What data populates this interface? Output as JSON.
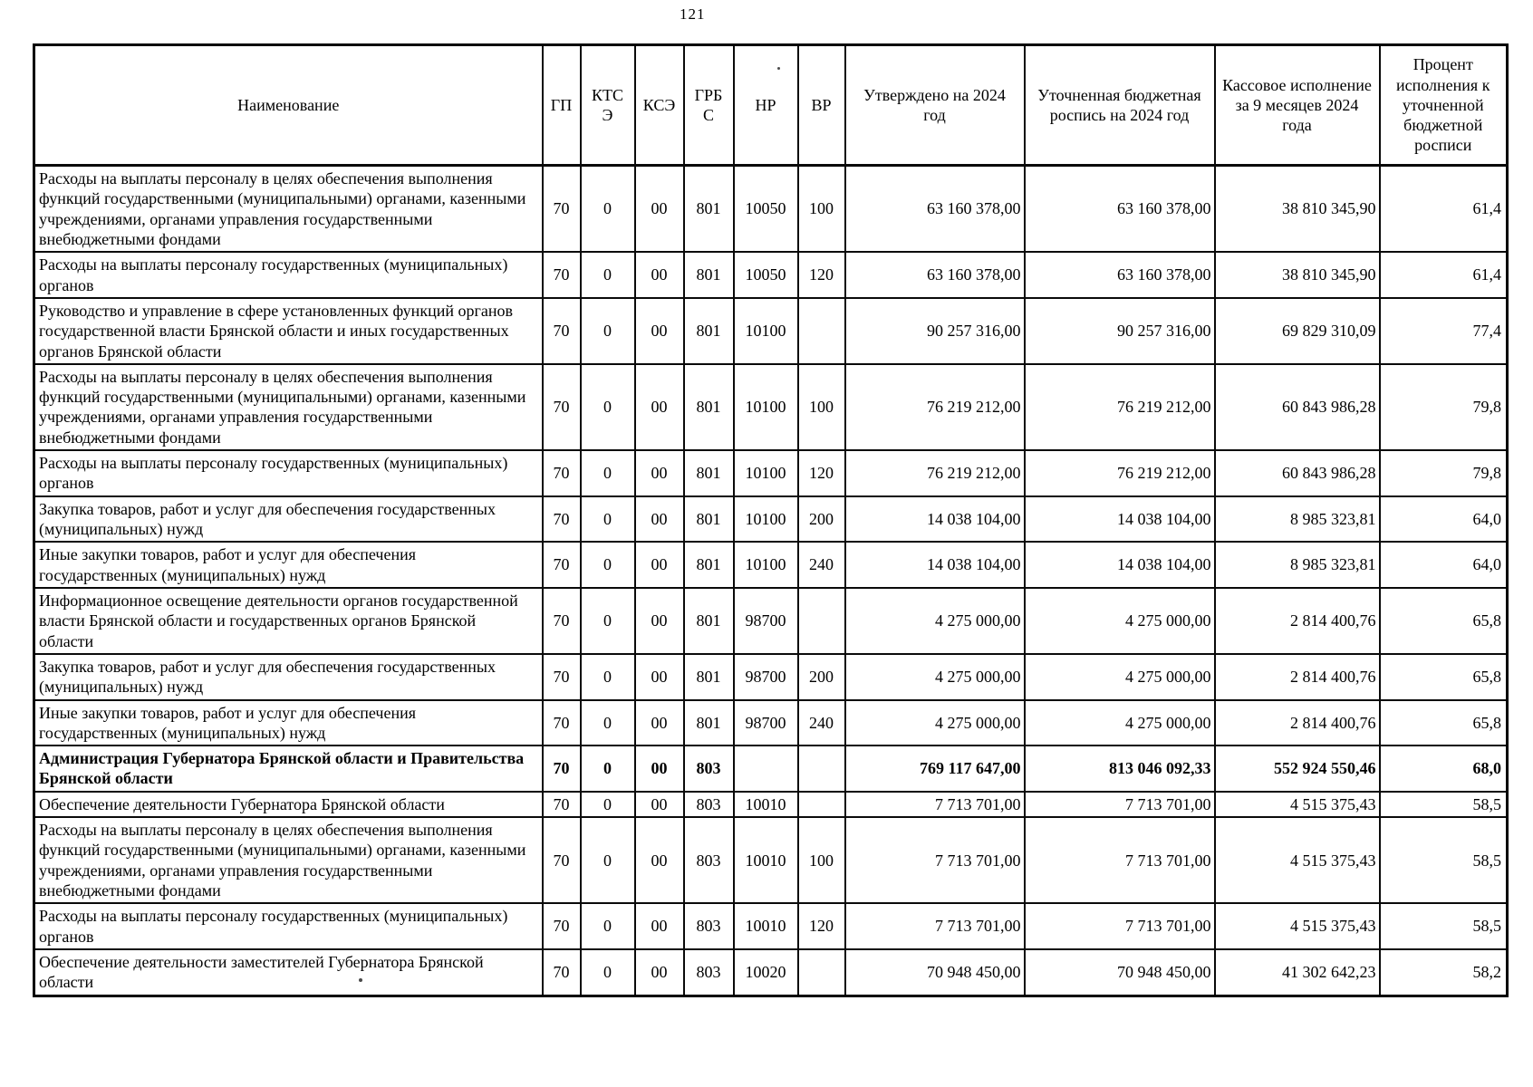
{
  "page": {
    "number": "121"
  },
  "table": {
    "columns": [
      {
        "key": "name",
        "label": "Наименование"
      },
      {
        "key": "gp",
        "label": "ГП"
      },
      {
        "key": "ktse",
        "label": "КТСЭ"
      },
      {
        "key": "kse",
        "label": "КСЭ"
      },
      {
        "key": "grbs",
        "label": "ГРБС"
      },
      {
        "key": "nr",
        "label": "НР"
      },
      {
        "key": "vr",
        "label": "ВР"
      },
      {
        "key": "approved",
        "label": "Утверждено на 2024 год"
      },
      {
        "key": "revised",
        "label": "Уточненная бюджетная роспись на 2024 год"
      },
      {
        "key": "cash",
        "label": "Кассовое исполнение за 9 месяцев 2024 года"
      },
      {
        "key": "percent",
        "label": "Процент исполнения к уточненной бюджетной росписи"
      }
    ],
    "rows": [
      {
        "emphasis": false,
        "cells": [
          "Расходы на выплаты персоналу в целях обеспечения выполнения функций государственными (муниципальными) органами, казенными учреждениями, органами управления государственными внебюджетными фондами",
          "70",
          "0",
          "00",
          "801",
          "10050",
          "100",
          "63 160 378,00",
          "63 160 378,00",
          "38 810 345,90",
          "61,4"
        ]
      },
      {
        "emphasis": false,
        "cells": [
          "Расходы на выплаты персоналу государственных (муниципальных) органов",
          "70",
          "0",
          "00",
          "801",
          "10050",
          "120",
          "63 160 378,00",
          "63 160 378,00",
          "38 810 345,90",
          "61,4"
        ]
      },
      {
        "emphasis": false,
        "cells": [
          "Руководство и управление в сфере установленных функций органов государственной власти Брянской области и иных государственных органов Брянской области",
          "70",
          "0",
          "00",
          "801",
          "10100",
          "",
          "90 257 316,00",
          "90 257 316,00",
          "69 829 310,09",
          "77,4"
        ]
      },
      {
        "emphasis": false,
        "cells": [
          "Расходы на выплаты персоналу в целях обеспечения выполнения функций государственными (муниципальными) органами, казенными учреждениями, органами управления государственными внебюджетными фондами",
          "70",
          "0",
          "00",
          "801",
          "10100",
          "100",
          "76 219 212,00",
          "76 219 212,00",
          "60 843 986,28",
          "79,8"
        ]
      },
      {
        "emphasis": false,
        "cells": [
          "Расходы на выплаты персоналу государственных (муниципальных) органов",
          "70",
          "0",
          "00",
          "801",
          "10100",
          "120",
          "76 219 212,00",
          "76 219 212,00",
          "60 843 986,28",
          "79,8"
        ]
      },
      {
        "emphasis": false,
        "cells": [
          "Закупка товаров, работ и услуг для обеспечения государственных (муниципальных) нужд",
          "70",
          "0",
          "00",
          "801",
          "10100",
          "200",
          "14 038 104,00",
          "14 038 104,00",
          "8 985 323,81",
          "64,0"
        ]
      },
      {
        "emphasis": false,
        "cells": [
          "Иные закупки товаров, работ и услуг для обеспечения государственных (муниципальных) нужд",
          "70",
          "0",
          "00",
          "801",
          "10100",
          "240",
          "14 038 104,00",
          "14 038 104,00",
          "8 985 323,81",
          "64,0"
        ]
      },
      {
        "emphasis": false,
        "cells": [
          "Информационное освещение деятельности органов государственной власти Брянской области и государственных органов Брянской области",
          "70",
          "0",
          "00",
          "801",
          "98700",
          "",
          "4 275 000,00",
          "4 275 000,00",
          "2 814 400,76",
          "65,8"
        ]
      },
      {
        "emphasis": false,
        "cells": [
          "Закупка товаров, работ и услуг для обеспечения государственных (муниципальных) нужд",
          "70",
          "0",
          "00",
          "801",
          "98700",
          "200",
          "4 275 000,00",
          "4 275 000,00",
          "2 814 400,76",
          "65,8"
        ]
      },
      {
        "emphasis": false,
        "cells": [
          "Иные закупки товаров, работ и услуг для обеспечения государственных (муниципальных) нужд",
          "70",
          "0",
          "00",
          "801",
          "98700",
          "240",
          "4 275 000,00",
          "4 275 000,00",
          "2 814 400,76",
          "65,8"
        ]
      },
      {
        "emphasis": true,
        "cells": [
          "Администрация Губернатора Брянской области и Правительства Брянской области",
          "70",
          "0",
          "00",
          "803",
          "",
          "",
          "769 117 647,00",
          "813 046 092,33",
          "552 924 550,46",
          "68,0"
        ]
      },
      {
        "emphasis": false,
        "cells": [
          "Обеспечение деятельности Губернатора Брянской области",
          "70",
          "0",
          "00",
          "803",
          "10010",
          "",
          "7 713 701,00",
          "7 713 701,00",
          "4 515 375,43",
          "58,5"
        ]
      },
      {
        "emphasis": false,
        "cells": [
          "Расходы на выплаты персоналу в целях обеспечения выполнения функций государственными (муниципальными) органами, казенными учреждениями, органами управления государственными внебюджетными фондами",
          "70",
          "0",
          "00",
          "803",
          "10010",
          "100",
          "7 713 701,00",
          "7 713 701,00",
          "4 515 375,43",
          "58,5"
        ]
      },
      {
        "emphasis": false,
        "cells": [
          "Расходы на выплаты персоналу государственных (муниципальных) органов",
          "70",
          "0",
          "00",
          "803",
          "10010",
          "120",
          "7 713 701,00",
          "7 713 701,00",
          "4 515 375,43",
          "58,5"
        ]
      },
      {
        "emphasis": false,
        "cells": [
          "Обеспечение деятельности заместителей Губернатора Брянской области",
          "70",
          "0",
          "00",
          "803",
          "10020",
          "",
          "70 948 450,00",
          "70 948 450,00",
          "41 302 642,23",
          "58,2"
        ]
      }
    ]
  }
}
